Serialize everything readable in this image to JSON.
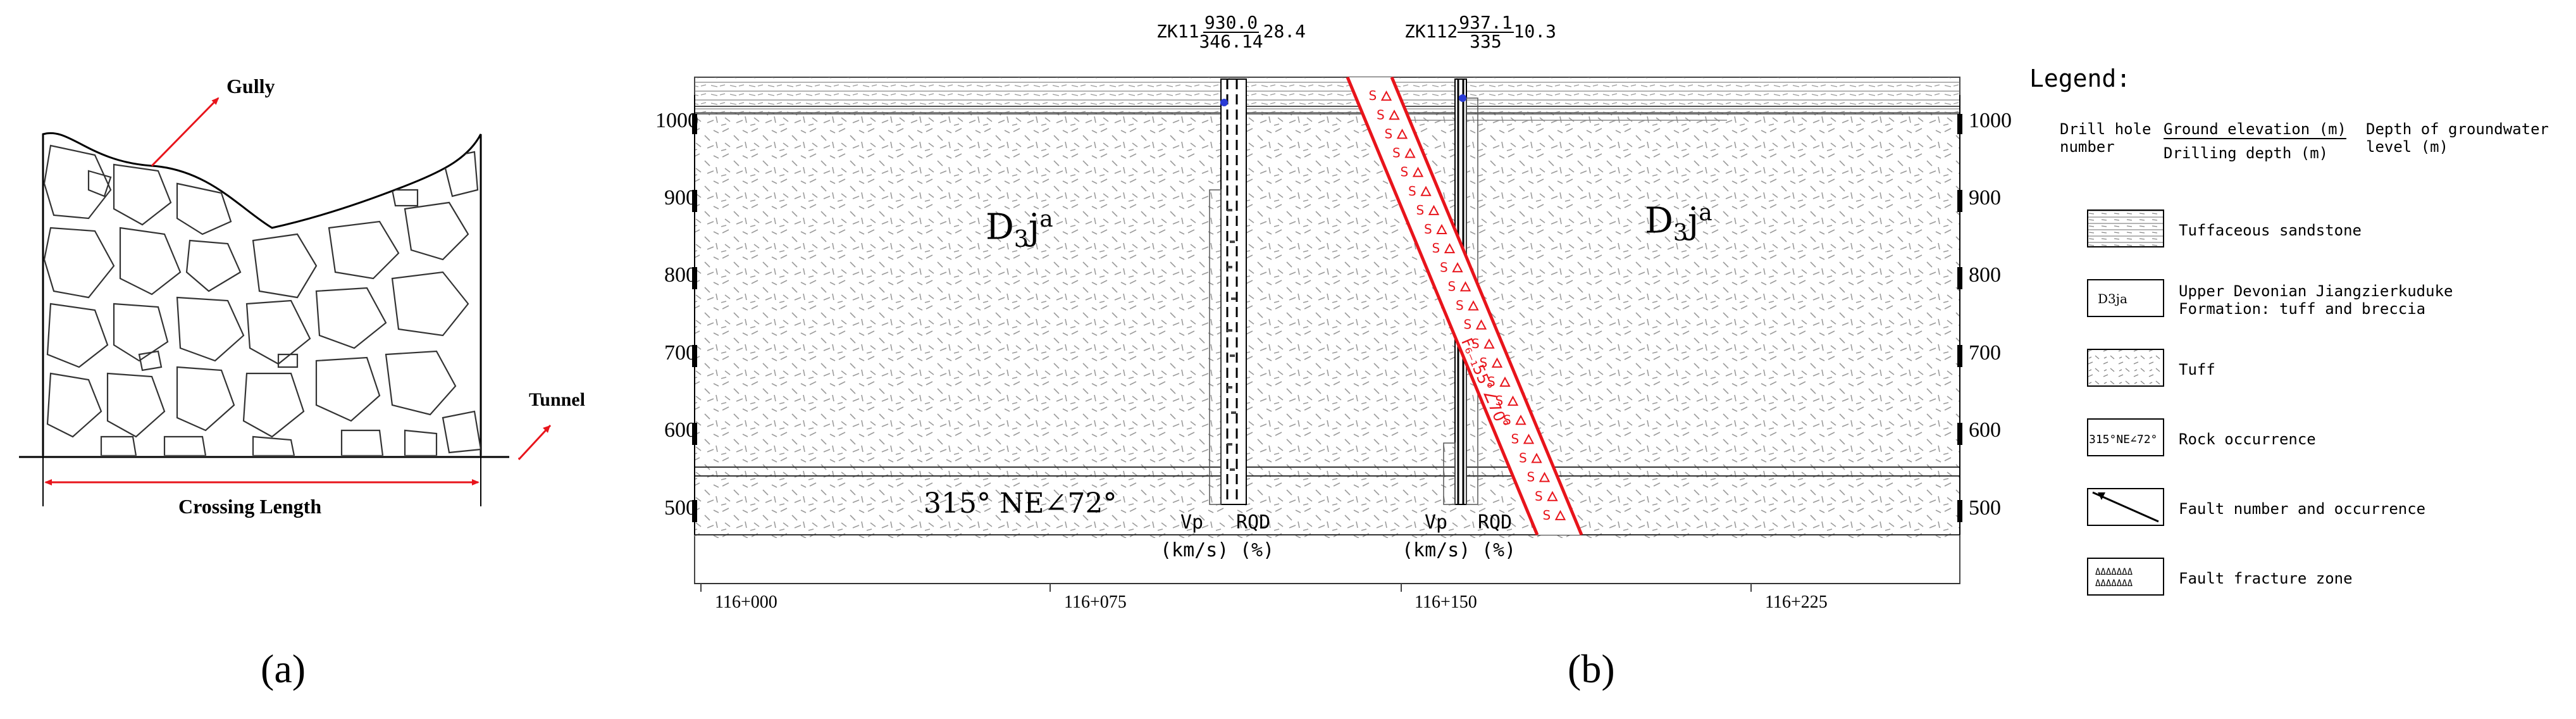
{
  "panel_a": {
    "label": "(a)",
    "gully_label": "Gully",
    "tunnel_label": "Tunnel",
    "crossing_label": "Crossing Length"
  },
  "panel_b": {
    "label": "(b)",
    "drill_holes": [
      {
        "id": "ZK11",
        "elevation": "930.0",
        "depth": "346.14",
        "water": "28.4"
      },
      {
        "id": "ZK112",
        "elevation": "937.1",
        "depth": "335",
        "water": "10.3"
      }
    ],
    "elevation_ticks_left": [
      "1000",
      "900",
      "800",
      "700",
      "600",
      "500"
    ],
    "elevation_ticks_right": [
      "1000",
      "900",
      "800",
      "700",
      "600",
      "500"
    ],
    "chainage_ticks": [
      "116+000",
      "116+075",
      "116+150",
      "116+225"
    ],
    "formation_left": {
      "base": "D",
      "sub": "3",
      "mid": "j",
      "sup": "a"
    },
    "formation_right": {
      "base": "D",
      "sub": "3",
      "mid": "j",
      "sup": "a"
    },
    "rock_occurrence": "315° NE∠72°",
    "fault_label": "F₆₋₁55°∠70°",
    "borehole_axis_1": {
      "vp": "Vp",
      "rqd": "RQD",
      "vp_unit": "(km/s)",
      "rqd_unit": "(%)"
    },
    "borehole_axis_2": {
      "vp": "Vp",
      "rqd": "RQD",
      "vp_unit": "(km/s)",
      "rqd_unit": "(%)"
    }
  },
  "legend": {
    "title": "Legend:",
    "header_col1": "Drill hole\nnumber",
    "header_num": "Ground elevation (m)",
    "header_den": "Drilling depth (m)",
    "header_col3": "Depth of groundwater\nlevel (m)",
    "items": [
      {
        "label": "Tuffaceous sandstone"
      },
      {
        "label": "Upper Devonian Jiangzierkuduke\nFormation: tuff and breccia",
        "symbol": "D3ja"
      },
      {
        "label": "Tuff"
      },
      {
        "label": "Rock occurrence",
        "symbol": "315°NE∠72°"
      },
      {
        "label": "Fault number and occurrence"
      },
      {
        "label": "Fault fracture zone"
      }
    ]
  },
  "colors": {
    "fault": "#e8141b",
    "line": "#000000",
    "hatch": "#9a9a9a",
    "water": "#2a3bd6"
  }
}
